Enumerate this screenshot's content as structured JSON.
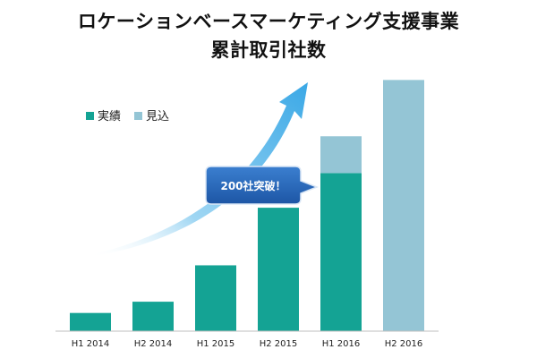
{
  "title_line1": "ロケーションベースマーケティング支援事業",
  "title_line2": "累計取引社数",
  "callout": "200社突破！",
  "colors": {
    "actual": "#14A394",
    "forecast": "#94C5D5",
    "arrow": "#4FB4E8",
    "callout": "#2364B8"
  },
  "chart_data": {
    "type": "bar",
    "stacked": true,
    "categories": [
      "H1 2014",
      "H2 2014",
      "H1 2015",
      "H2 2015",
      "H1 2016",
      "H2 2016"
    ],
    "series": [
      {
        "name": "実績",
        "values": [
          42,
          68,
          152,
          285,
          365,
          0
        ]
      },
      {
        "name": "見込",
        "values": [
          0,
          0,
          0,
          0,
          85,
          580
        ]
      }
    ],
    "ylim": [
      0,
      620
    ],
    "legend_position": "top-left",
    "grid": false,
    "annotation": {
      "text": "200社突破！",
      "category": "H1 2016"
    }
  }
}
